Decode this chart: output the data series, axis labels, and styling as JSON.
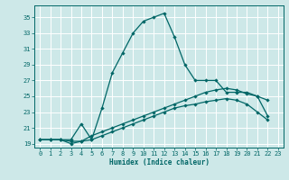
{
  "xlabel": "Humidex (Indice chaleur)",
  "bg_color": "#cde8e8",
  "line_color": "#006666",
  "grid_color": "#ffffff",
  "xlim": [
    -0.5,
    23.5
  ],
  "ylim": [
    18.5,
    36.5
  ],
  "yticks": [
    19,
    21,
    23,
    25,
    27,
    29,
    31,
    33,
    35
  ],
  "xticks": [
    0,
    1,
    2,
    3,
    4,
    5,
    6,
    7,
    8,
    9,
    10,
    11,
    12,
    13,
    14,
    15,
    16,
    17,
    18,
    19,
    20,
    21,
    22,
    23
  ],
  "curve1_x": [
    0,
    1,
    2,
    3,
    4,
    5,
    6,
    7,
    8,
    9,
    10,
    11,
    12,
    13,
    14,
    15,
    16,
    17,
    18,
    19,
    20,
    21,
    22
  ],
  "curve1_y": [
    19.5,
    19.5,
    19.5,
    19.5,
    21.5,
    19.5,
    23.5,
    28.0,
    30.5,
    33.0,
    34.5,
    35.0,
    35.5,
    32.5,
    29.0,
    27.0,
    27.0,
    27.0,
    25.5,
    25.5,
    25.5,
    25.0,
    24.5
  ],
  "curve2_x": [
    0,
    1,
    2,
    3,
    4,
    5,
    6,
    7,
    8,
    9,
    10,
    11,
    12,
    13,
    14,
    15,
    16,
    17,
    18,
    19,
    20,
    21,
    22
  ],
  "curve2_y": [
    19.5,
    19.5,
    19.5,
    19.3,
    19.3,
    20.0,
    20.5,
    21.0,
    21.5,
    22.0,
    22.5,
    23.0,
    23.5,
    24.0,
    24.5,
    25.0,
    25.5,
    25.8,
    26.0,
    25.8,
    25.3,
    25.0,
    22.5
  ],
  "curve3_x": [
    0,
    1,
    2,
    3,
    4,
    5,
    6,
    7,
    8,
    9,
    10,
    11,
    12,
    13,
    14,
    15,
    16,
    17,
    18,
    19,
    20,
    21,
    22
  ],
  "curve3_y": [
    19.5,
    19.5,
    19.5,
    19.0,
    19.3,
    19.5,
    20.0,
    20.5,
    21.0,
    21.5,
    22.0,
    22.5,
    23.0,
    23.5,
    23.8,
    24.0,
    24.3,
    24.5,
    24.7,
    24.5,
    24.0,
    23.0,
    22.0
  ]
}
